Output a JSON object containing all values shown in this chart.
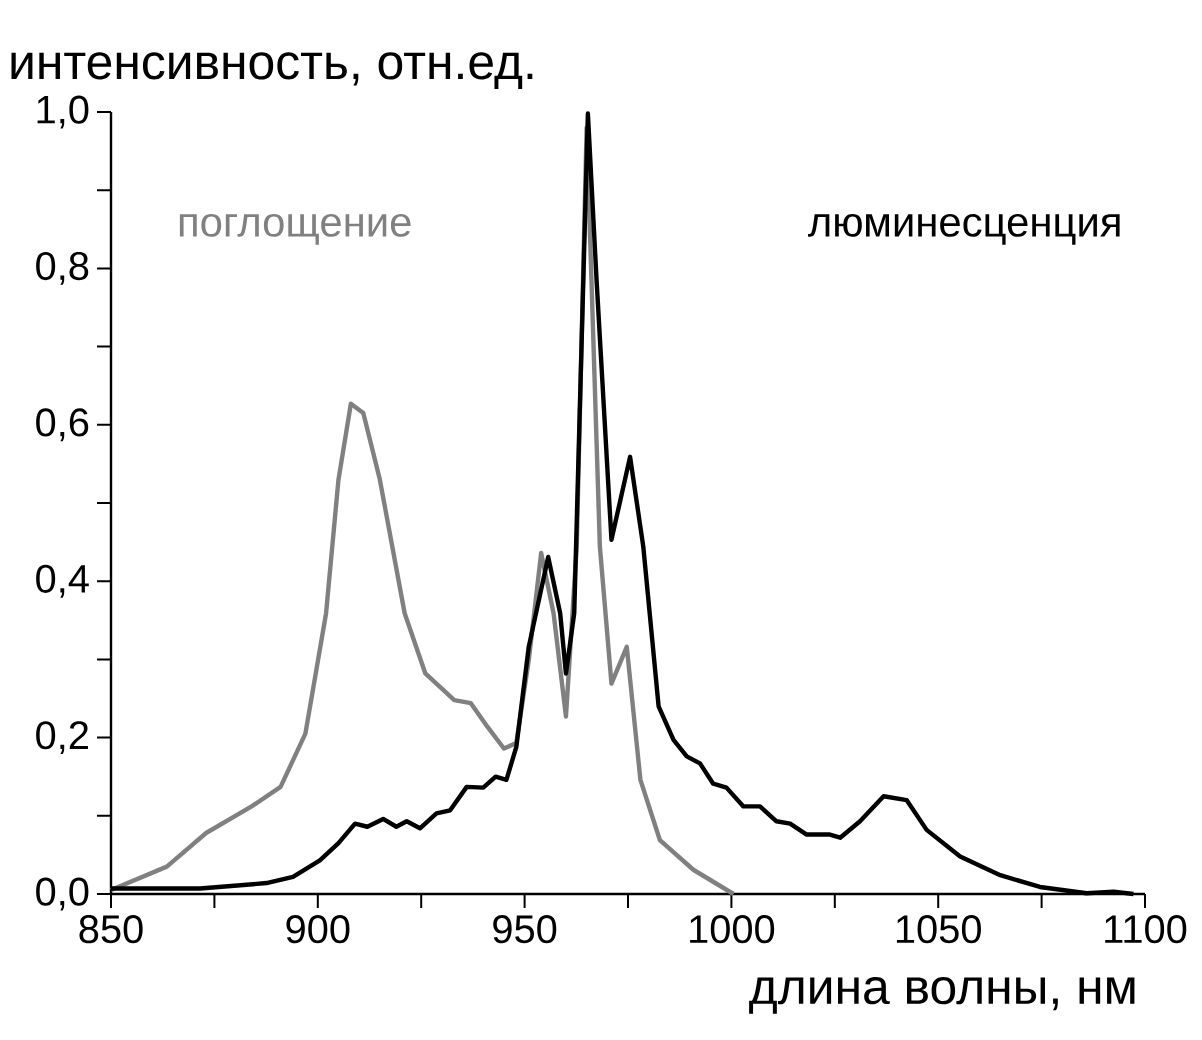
{
  "chart_data": {
    "type": "line",
    "xlabel": "длина волны, нм",
    "ylabel": "интенсивность, отн.ед.",
    "xlim": [
      850,
      1100
    ],
    "ylim": [
      0,
      1.0
    ],
    "xticks": [
      850,
      {
        "value": 875,
        "label": null
      },
      900,
      {
        "value": 925,
        "label": null
      },
      950,
      {
        "value": 975,
        "label": null
      },
      1000,
      {
        "value": 1025,
        "label": null
      },
      1050,
      {
        "value": 1075,
        "label": null
      },
      1100
    ],
    "yticks": [
      {
        "value": 0,
        "label": "0,0"
      },
      {
        "value": 0.1,
        "label": null
      },
      {
        "value": 0.2,
        "label": "0,2"
      },
      {
        "value": 0.3,
        "label": null
      },
      {
        "value": 0.4,
        "label": "0,4"
      },
      {
        "value": 0.5,
        "label": null
      },
      {
        "value": 0.6,
        "label": "0,6"
      },
      {
        "value": 0.7,
        "label": null
      },
      {
        "value": 0.8,
        "label": "0,8"
      },
      {
        "value": 0.9,
        "label": null
      },
      {
        "value": 1.0,
        "label": "1,0"
      }
    ],
    "grid": false,
    "legend": false,
    "line_style": "solid",
    "marker": "none",
    "series": [
      {
        "name": "поглощение",
        "color": "#808080",
        "x": [
          850,
          863.5,
          873,
          884,
          891,
          897,
          902,
          905,
          908,
          911,
          915,
          921,
          926,
          933,
          937,
          941,
          945,
          948,
          951,
          954,
          957,
          960,
          962.6,
          965,
          968.2,
          971,
          974.7,
          978,
          982.7,
          990.8,
          1000.5
        ],
        "values": [
          0.005,
          0.035,
          0.078,
          0.112,
          0.137,
          0.205,
          0.359,
          0.53,
          0.627,
          0.615,
          0.53,
          0.359,
          0.282,
          0.248,
          0.244,
          0.214,
          0.186,
          0.193,
          0.299,
          0.436,
          0.359,
          0.227,
          0.444,
          0.98,
          0.444,
          0.269,
          0.316,
          0.146,
          0.069,
          0.031,
          0
        ]
      },
      {
        "name": "люминесценция",
        "color": "#000000",
        "x": [
          850,
          871.5,
          887.6,
          894,
          900.5,
          905,
          909,
          912,
          915.8,
          919,
          921.5,
          924.7,
          928.7,
          932,
          936,
          940,
          943,
          945.6,
          948,
          951,
          955.7,
          958.6,
          960,
          962,
          965.3,
          967.4,
          971,
          975.5,
          978.7,
          982.4,
          986,
          989.2,
          992.4,
          995.6,
          998.8,
          1002.9,
          1006.9,
          1010.9,
          1014.2,
          1018.2,
          1023.8,
          1026.3,
          1031.1,
          1036.8,
          1042.4,
          1047.2,
          1055.3,
          1065,
          1074.6,
          1085.9,
          1092.4,
          1097.2
        ],
        "values": [
          0.007,
          0.007,
          0.014,
          0.022,
          0.043,
          0.065,
          0.09,
          0.086,
          0.096,
          0.086,
          0.093,
          0.084,
          0.103,
          0.107,
          0.137,
          0.136,
          0.15,
          0.146,
          0.188,
          0.316,
          0.431,
          0.359,
          0.282,
          0.359,
          0.998,
          0.785,
          0.453,
          0.559,
          0.444,
          0.24,
          0.197,
          0.176,
          0.167,
          0.141,
          0.136,
          0.112,
          0.112,
          0.093,
          0.09,
          0.076,
          0.076,
          0.072,
          0.093,
          0.125,
          0.12,
          0.082,
          0.048,
          0.024,
          0.009,
          0.001,
          0.003,
          0
        ]
      }
    ]
  }
}
